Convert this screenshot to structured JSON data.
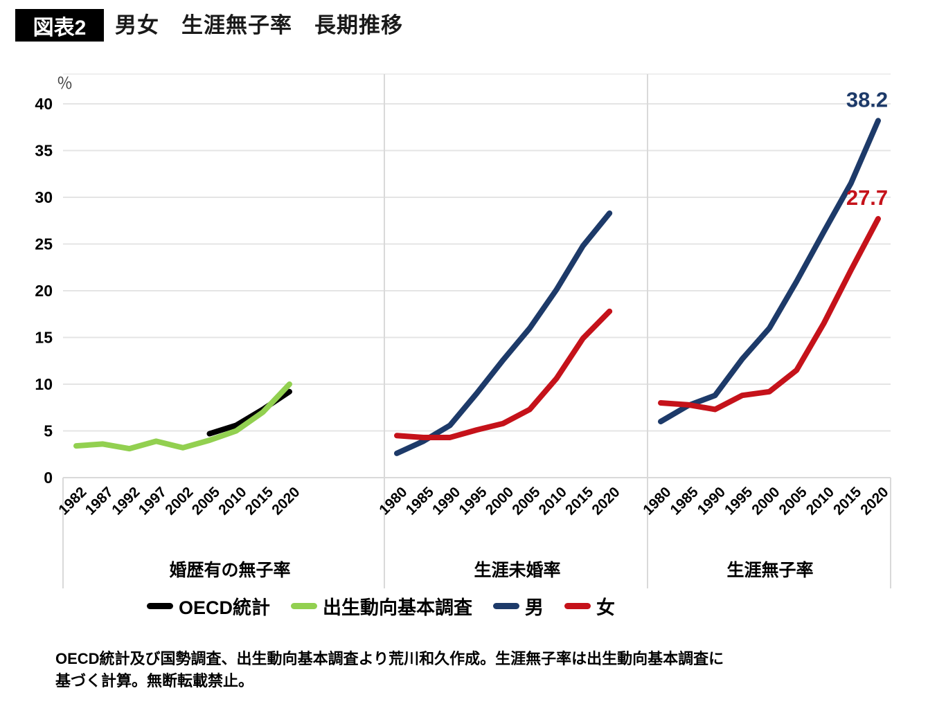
{
  "header": {
    "badge": "図表2",
    "title": "男女　生涯無子率　長期推移"
  },
  "y_axis": {
    "unit": "％",
    "ticks": [
      40,
      35,
      30,
      25,
      20,
      15,
      10,
      5,
      0
    ]
  },
  "chart_data": {
    "type": "line",
    "unit": "%",
    "ylim": [
      0,
      40
    ],
    "grid": true,
    "legend_position": "bottom",
    "panels": [
      {
        "label": "婚歴有の無子率",
        "years": [
          "1982",
          "1987",
          "1992",
          "1997",
          "2002",
          "2005",
          "2010",
          "2015",
          "2020"
        ],
        "series": [
          {
            "name": "OECD統計",
            "color": "#000000",
            "values": [
              null,
              null,
              null,
              null,
              null,
              4.7,
              5.6,
              7.3,
              9.2
            ]
          },
          {
            "name": "出生動向基本調査",
            "color": "#92d050",
            "values": [
              3.4,
              3.6,
              3.1,
              3.9,
              3.2,
              4.0,
              5.0,
              7.0,
              10.0
            ]
          }
        ]
      },
      {
        "label": "生涯未婚率",
        "years": [
          "1980",
          "1985",
          "1990",
          "1995",
          "2000",
          "2005",
          "2010",
          "2015",
          "2020"
        ],
        "series": [
          {
            "name": "男",
            "color": "#1d3a69",
            "values": [
              2.6,
              3.9,
              5.6,
              9.0,
              12.6,
              16.0,
              20.1,
              24.8,
              28.3
            ]
          },
          {
            "name": "女",
            "color": "#c5121a",
            "values": [
              4.5,
              4.3,
              4.3,
              5.1,
              5.8,
              7.3,
              10.6,
              14.9,
              17.8
            ]
          }
        ]
      },
      {
        "label": "生涯無子率",
        "years": [
          "1980",
          "1985",
          "1990",
          "1995",
          "2000",
          "2005",
          "2010",
          "2015",
          "2020"
        ],
        "series": [
          {
            "name": "男",
            "color": "#1d3a69",
            "values": [
              6.0,
              7.7,
              8.8,
              12.7,
              16.0,
              21.0,
              26.3,
              31.5,
              38.2
            ],
            "end_label": "38.2"
          },
          {
            "name": "女",
            "color": "#c5121a",
            "values": [
              8.0,
              7.8,
              7.3,
              8.8,
              9.2,
              11.5,
              16.5,
              22.2,
              27.7
            ],
            "end_label": "27.7"
          }
        ]
      }
    ]
  },
  "legend": {
    "items": [
      {
        "label": "OECD統計",
        "color": "#000000"
      },
      {
        "label": "出生動向基本調査",
        "color": "#92d050"
      },
      {
        "label": "男",
        "color": "#1d3a69"
      },
      {
        "label": "女",
        "color": "#c5121a"
      }
    ]
  },
  "footnote": {
    "line1": "OECD統計及び国勢調査、出生動向基本調査より荒川和久作成。生涯無子率は出生動向基本調査に",
    "line2": "基づく計算。無断転載禁止。"
  }
}
